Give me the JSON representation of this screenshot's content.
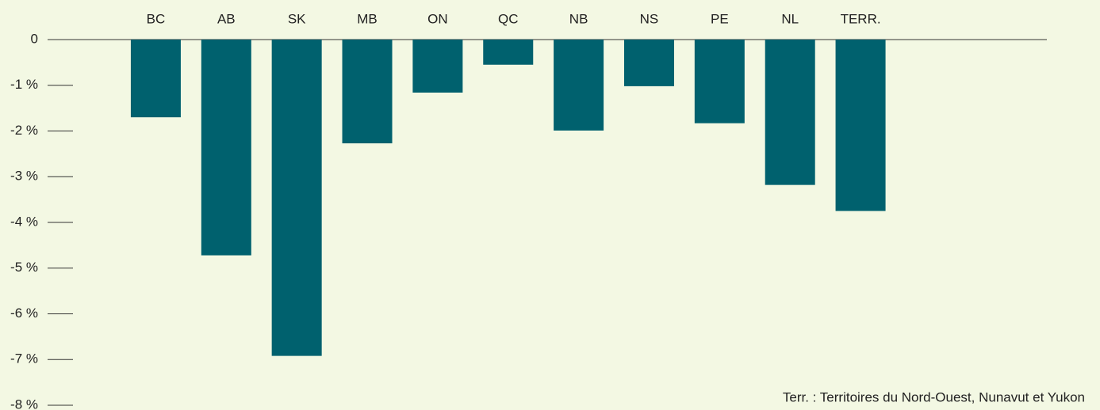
{
  "chart_data": {
    "type": "bar",
    "categories": [
      "BC",
      "AB",
      "SK",
      "MB",
      "ON",
      "QC",
      "NB",
      "NS",
      "PE",
      "NL",
      "TERR."
    ],
    "values": [
      -1.7,
      -4.72,
      -6.92,
      -2.27,
      -1.16,
      -0.55,
      -1.99,
      -1.02,
      -1.83,
      -3.18,
      -3.75
    ],
    "color": "#00616e",
    "ylim": [
      -8,
      0
    ],
    "yticks": [
      0,
      {
        "value": -1,
        "label": "-1 %"
      },
      {
        "value": -2,
        "label": "-2 %"
      },
      {
        "value": -3,
        "label": "-3 %"
      },
      {
        "value": -4,
        "label": "-4 %"
      },
      {
        "value": -5,
        "label": "-5 %"
      },
      {
        "value": -6,
        "label": "-6 %"
      },
      {
        "value": -7,
        "label": "-7 %"
      },
      {
        "value": -8,
        "label": "-8 %"
      }
    ],
    "annotation": "Terr. : Territoires du Nord-Ouest, Nunavut et Yukon"
  }
}
